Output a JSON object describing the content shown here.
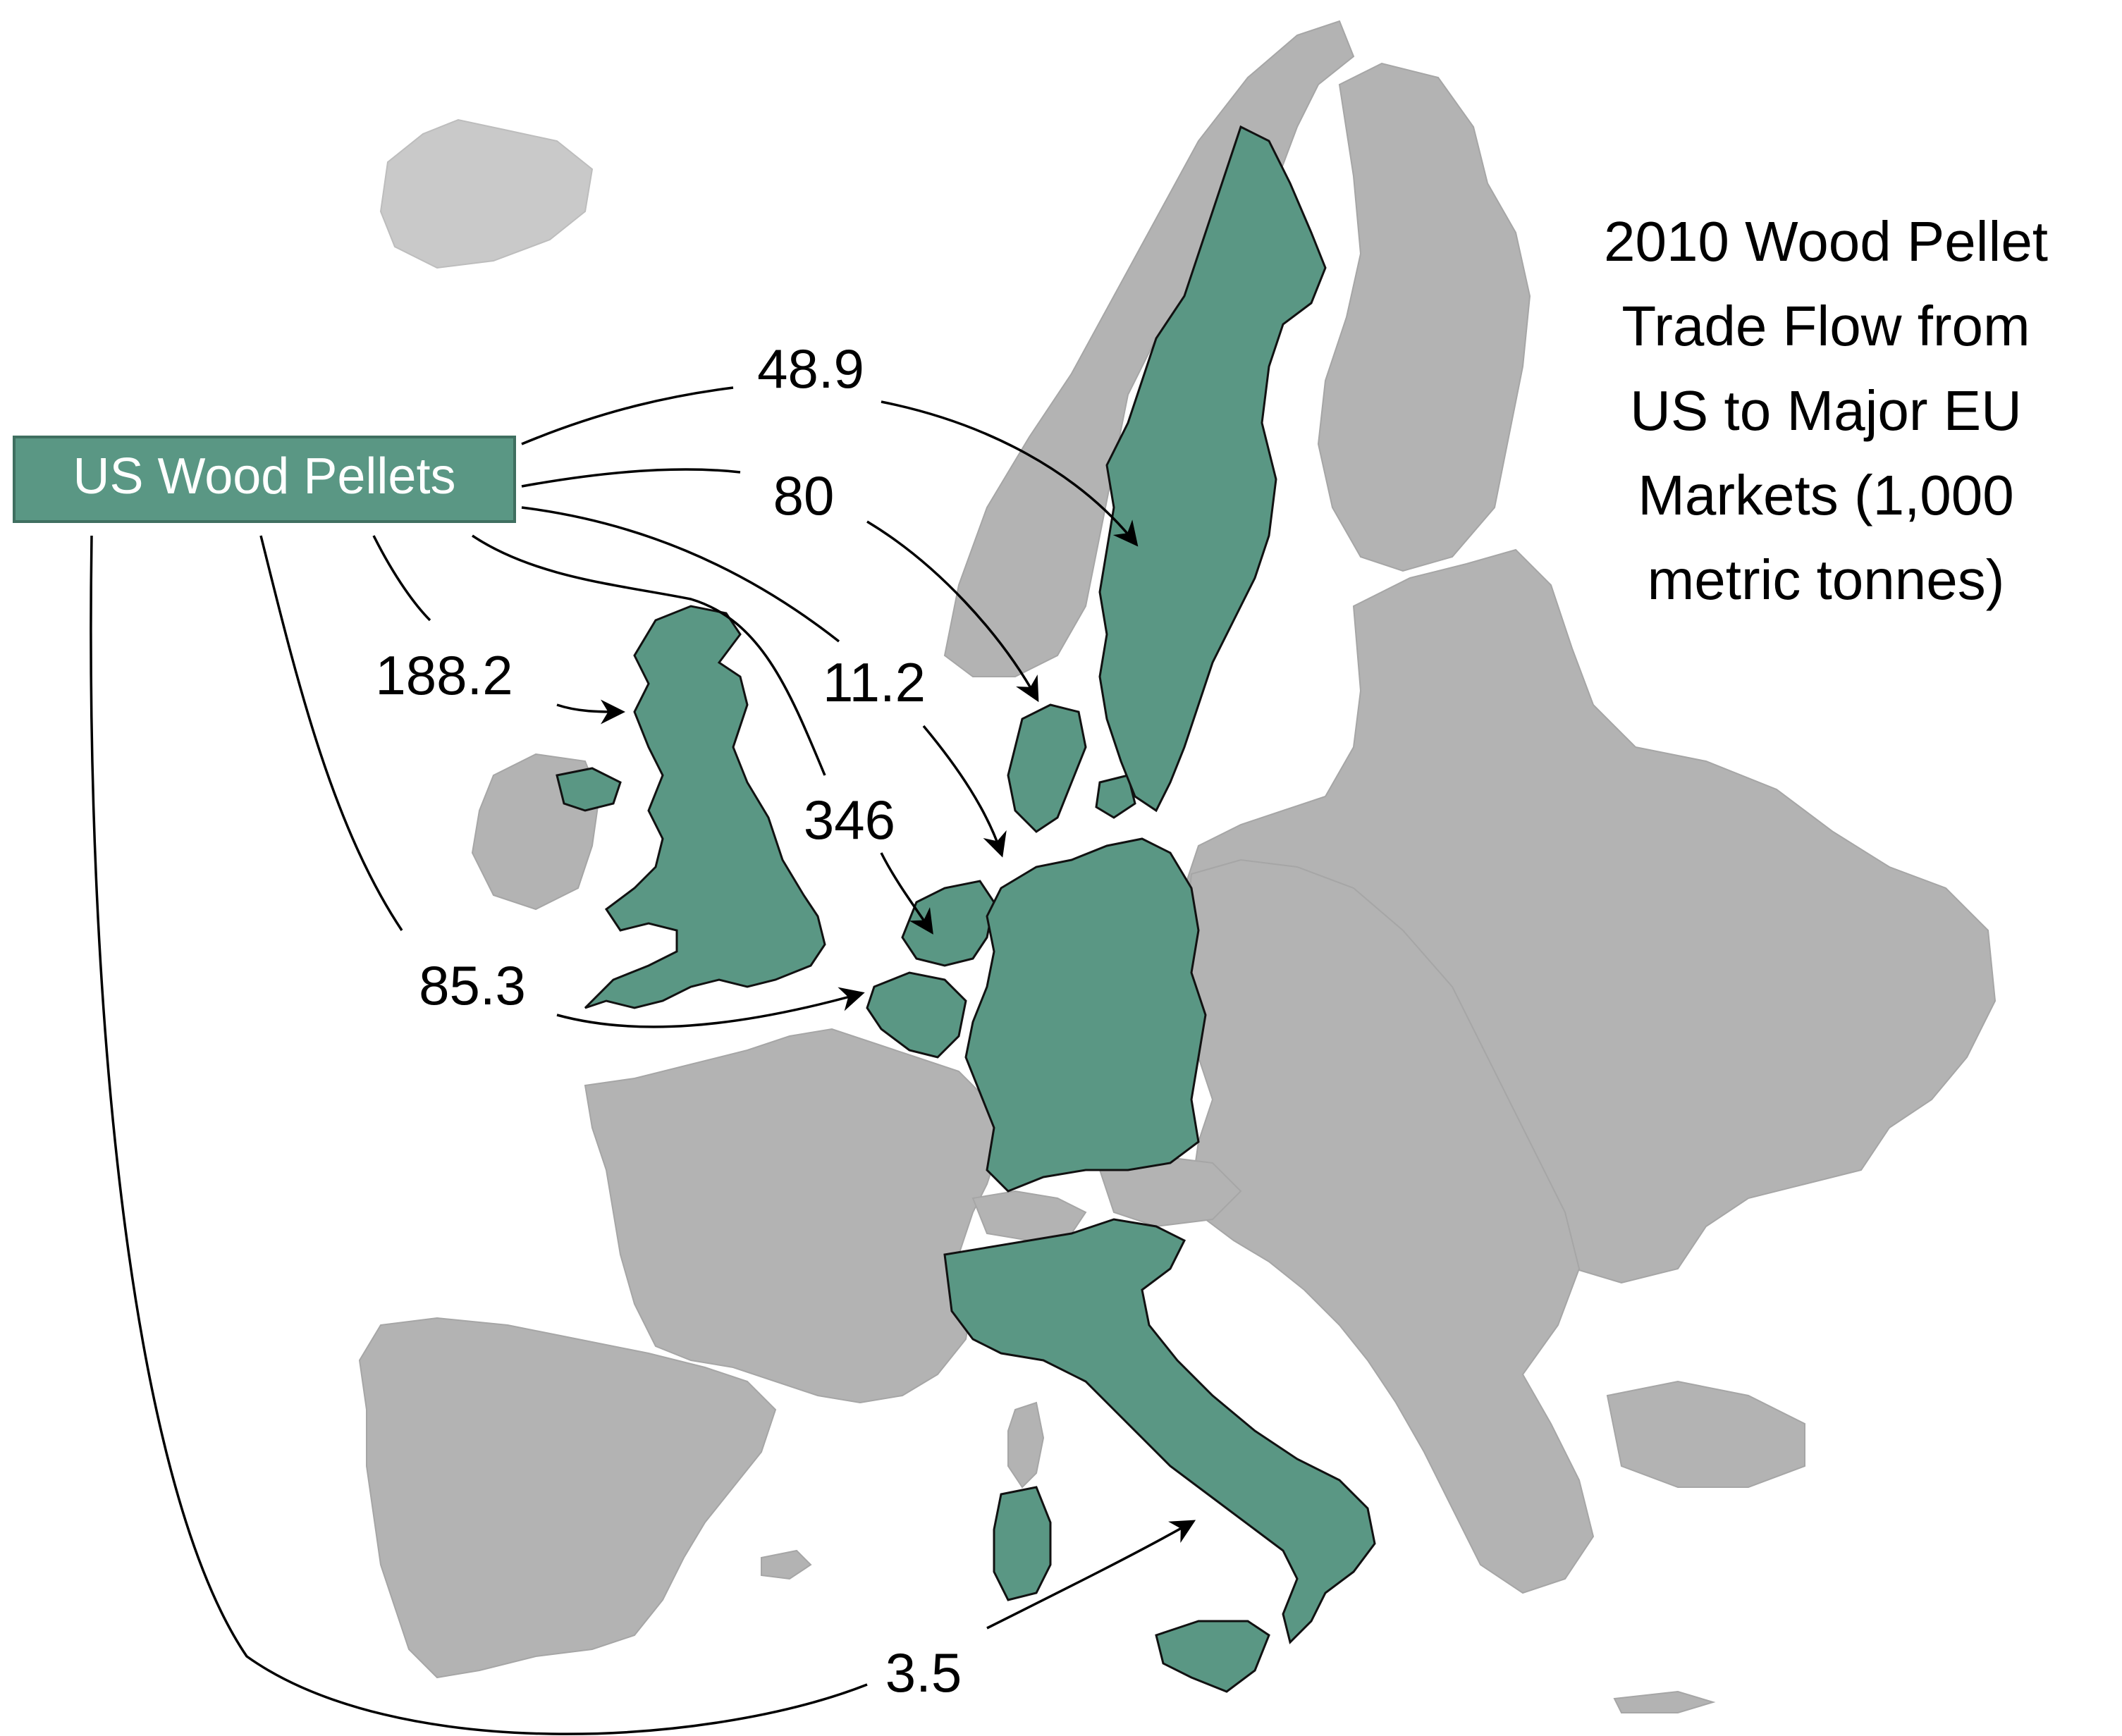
{
  "title_lines": [
    "2010 Wood Pellet",
    "Trade Flow from",
    "US to Major EU",
    "Markets (1,000",
    "metric tonnes)"
  ],
  "source_label": "US Wood Pellets",
  "colors": {
    "highlight": "#5a9784",
    "land": "#b3b3b3",
    "source_box": "#5a9784",
    "flow_line": "#000000"
  },
  "flows": [
    {
      "destination": "Sweden",
      "value": "48.9"
    },
    {
      "destination": "Denmark",
      "value": "80"
    },
    {
      "destination": "United Kingdom",
      "value": "188.2"
    },
    {
      "destination": "Germany",
      "value": "11.2"
    },
    {
      "destination": "Netherlands",
      "value": "346"
    },
    {
      "destination": "Belgium",
      "value": "85.3"
    },
    {
      "destination": "Italy",
      "value": "3.5"
    }
  ],
  "highlighted_countries": [
    "Sweden",
    "Denmark",
    "United Kingdom",
    "Germany",
    "Netherlands",
    "Belgium",
    "Italy"
  ]
}
